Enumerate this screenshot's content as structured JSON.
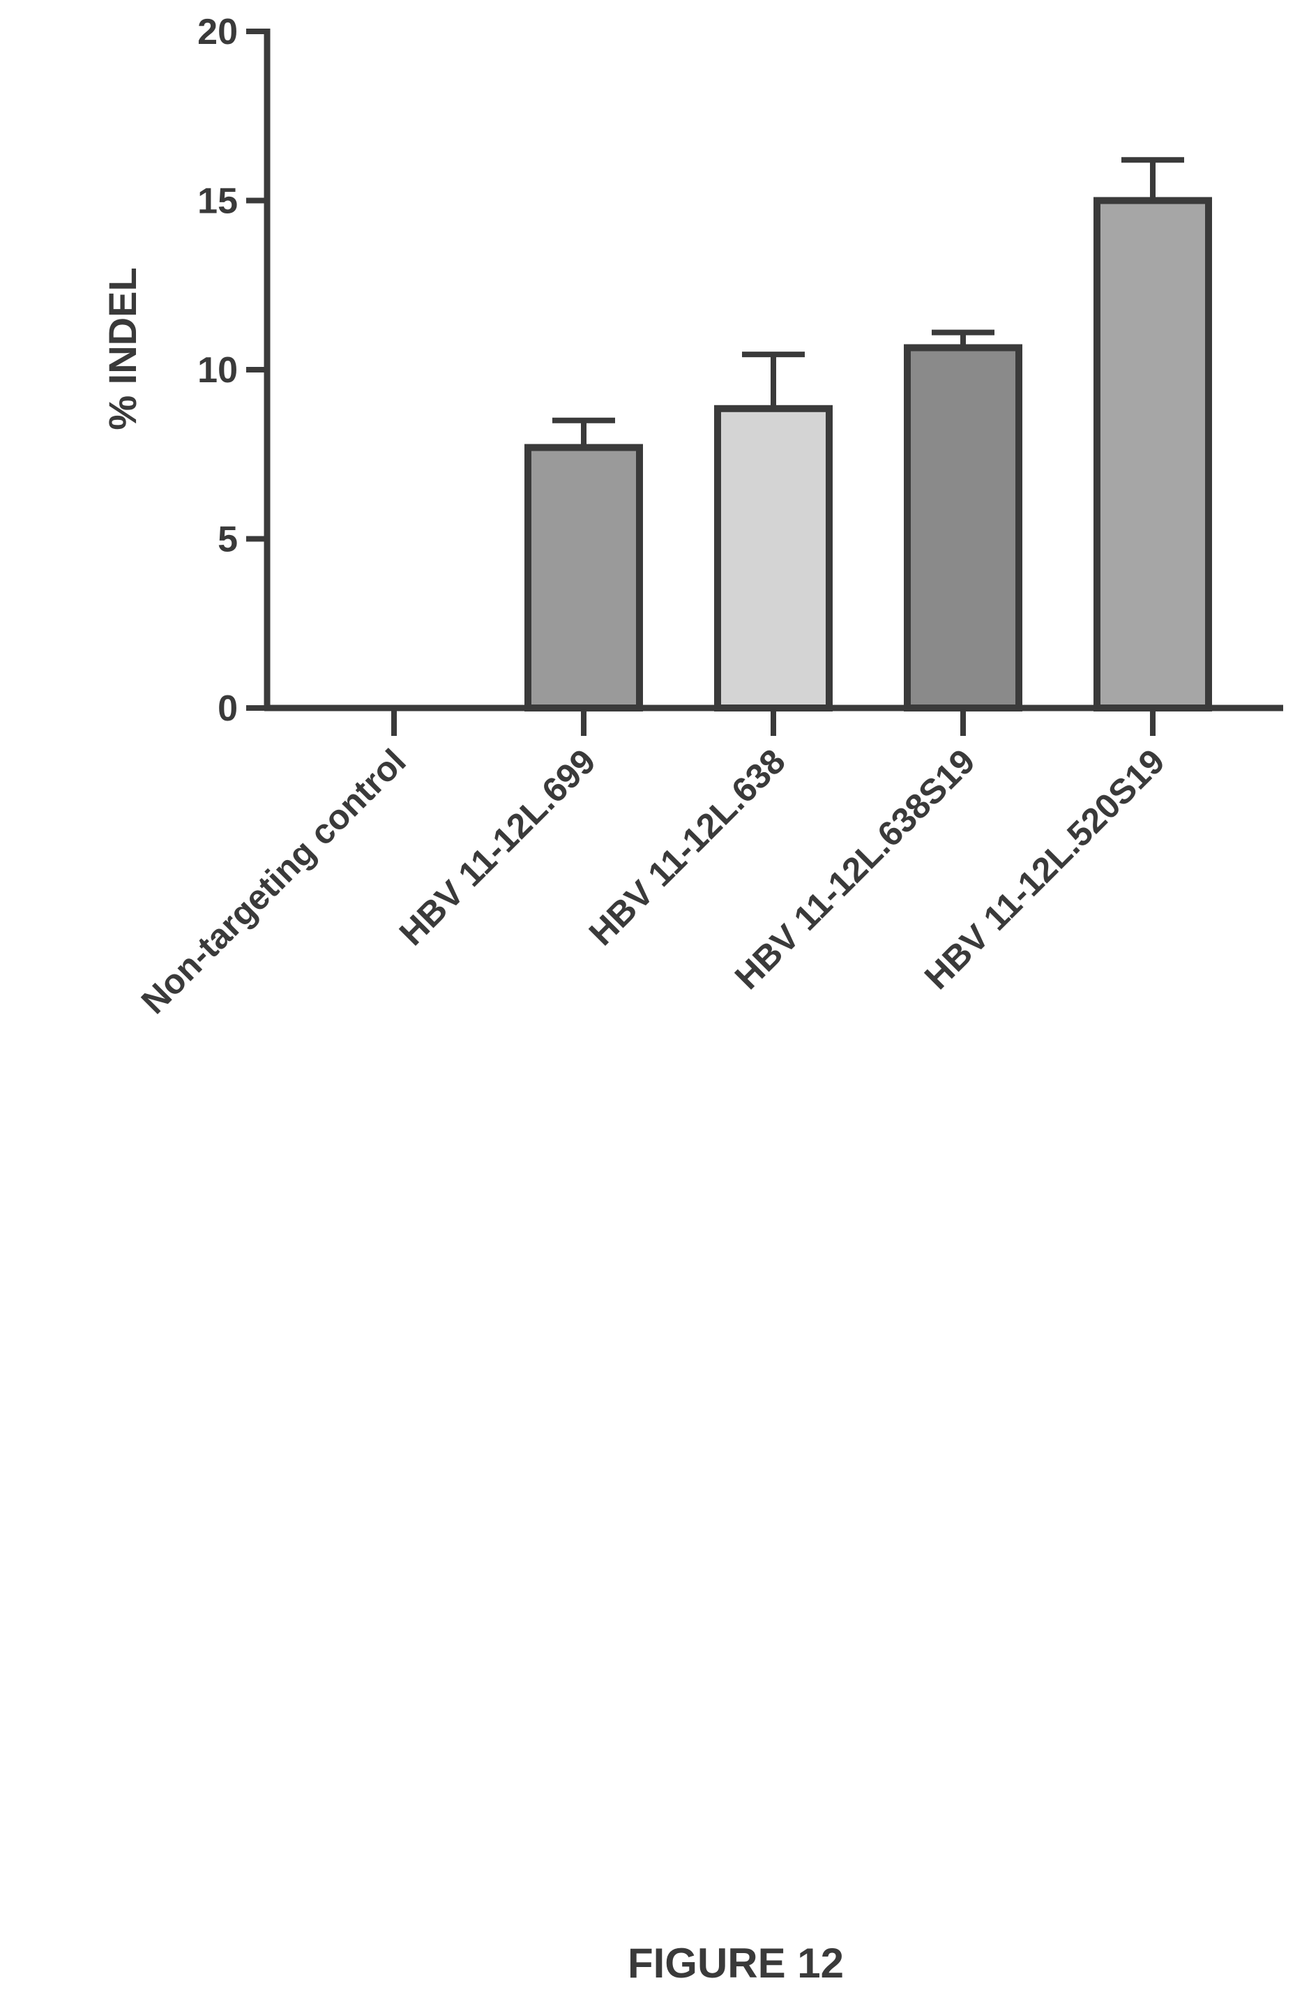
{
  "chart_data": {
    "type": "bar",
    "categories": [
      "Non-targeting control",
      "HBV 11-12L.699",
      "HBV 11-12L.638",
      "HBV 11-12L.638S19",
      "HBV 11-12L.520S19"
    ],
    "series": [
      {
        "values": [
          0,
          7.7,
          8.85,
          10.65,
          15.0
        ],
        "error": [
          0,
          0.8,
          1.6,
          0.45,
          1.2
        ],
        "colors": [
          "#9a9a9a",
          "#9a9a9a",
          "#d4d4d4",
          "#8a8a8a",
          "#a6a6a6"
        ]
      }
    ],
    "ylabel": "% INDEL",
    "xlabel": "",
    "ylim": [
      0,
      20
    ],
    "yticks": [
      "0",
      "5",
      "10",
      "15",
      "20"
    ],
    "grid": false,
    "legend": "none"
  },
  "caption": "FIGURE 12"
}
